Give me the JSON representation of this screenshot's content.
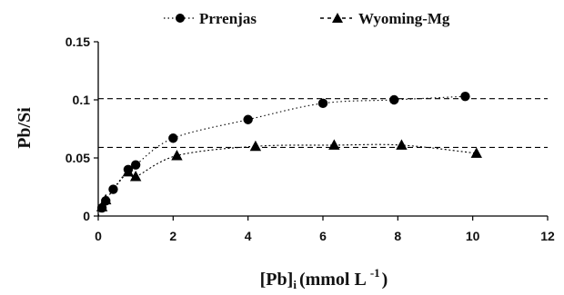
{
  "chart_data": {
    "type": "scatter",
    "xlabel_main": "[Pb]",
    "xlabel_sub": "i",
    "xlabel_rest": "(mmol L",
    "xlabel_sup": "-1",
    "xlabel_close": ")",
    "ylabel": "Pb/Si",
    "xlim": [
      0,
      12
    ],
    "ylim": [
      0,
      0.15
    ],
    "xticks": [
      "0",
      "2",
      "4",
      "6",
      "8",
      "10",
      "12"
    ],
    "yticks": [
      "0",
      "0.05",
      "0.1",
      "0.15"
    ],
    "grid": false,
    "legend_position": "top",
    "series": [
      {
        "name": "Prrenjas",
        "marker": "circle",
        "color": "#000000",
        "x": [
          0.1,
          0.2,
          0.4,
          0.8,
          1.0,
          2.0,
          4.0,
          6.0,
          7.9,
          9.8
        ],
        "y": [
          0.007,
          0.013,
          0.023,
          0.04,
          0.044,
          0.067,
          0.083,
          0.097,
          0.1,
          0.103
        ],
        "plateau": 0.101
      },
      {
        "name": "Wyoming-Mg",
        "marker": "triangle",
        "color": "#000000",
        "x": [
          0.1,
          0.2,
          0.8,
          1.0,
          2.1,
          4.2,
          6.3,
          8.1,
          10.1
        ],
        "y": [
          0.008,
          0.014,
          0.038,
          0.034,
          0.052,
          0.06,
          0.061,
          0.061,
          0.054
        ],
        "plateau": 0.059
      }
    ]
  }
}
